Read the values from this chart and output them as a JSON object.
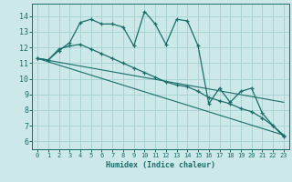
{
  "xlabel": "Humidex (Indice chaleur)",
  "bg_color": "#cce8e8",
  "grid_color": "#aad4d4",
  "line_color": "#1a6e6a",
  "xlim": [
    -0.5,
    23.5
  ],
  "ylim": [
    5.5,
    14.8
  ],
  "yticks": [
    6,
    7,
    8,
    9,
    10,
    11,
    12,
    13,
    14
  ],
  "xticks": [
    0,
    1,
    2,
    3,
    4,
    5,
    6,
    7,
    8,
    9,
    10,
    11,
    12,
    13,
    14,
    15,
    16,
    17,
    18,
    19,
    20,
    21,
    22,
    23
  ],
  "series1_x": [
    0,
    1,
    2,
    3,
    4,
    5,
    6,
    7,
    8,
    9,
    10,
    11,
    12,
    13,
    14,
    15,
    16,
    17,
    18,
    19,
    20,
    21,
    22,
    23
  ],
  "series1_y": [
    11.3,
    11.2,
    11.8,
    12.3,
    13.6,
    13.8,
    13.5,
    13.5,
    13.3,
    12.1,
    14.3,
    13.5,
    12.2,
    13.8,
    13.7,
    12.1,
    8.4,
    9.4,
    8.5,
    9.2,
    9.4,
    7.8,
    7.0,
    6.3
  ],
  "series2_x": [
    0,
    1,
    2,
    3,
    4,
    5,
    6,
    7,
    8,
    9,
    10,
    11,
    12,
    13,
    14,
    15,
    16,
    17,
    18,
    19,
    20,
    21,
    22,
    23
  ],
  "series2_y": [
    11.3,
    11.2,
    11.9,
    12.1,
    12.2,
    11.9,
    11.6,
    11.3,
    11.0,
    10.7,
    10.4,
    10.1,
    9.8,
    9.6,
    9.5,
    9.2,
    8.8,
    8.6,
    8.4,
    8.1,
    7.9,
    7.5,
    7.0,
    6.4
  ],
  "trend1_x": [
    0,
    23
  ],
  "trend1_y": [
    11.3,
    8.5
  ],
  "trend2_x": [
    0,
    23
  ],
  "trend2_y": [
    11.3,
    6.4
  ]
}
